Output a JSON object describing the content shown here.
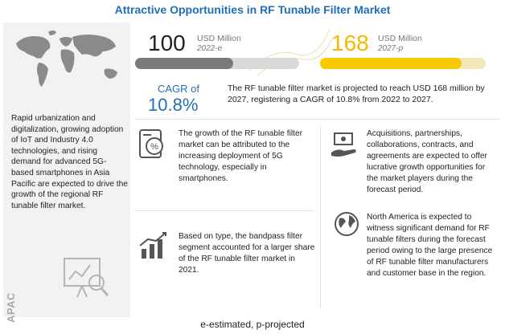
{
  "title": "Attractive Opportunities in RF Tunable Filter Market",
  "left_panel": {
    "description": "Rapid urbanization and digitalization, growing adoption of IoT and Industry 4.0 technologies, and rising demand for advanced 5G-based smartphones in Asia Pacific are expected to drive the growth of the regional RF tunable filter market.",
    "region_label": "APAC"
  },
  "metric_2022": {
    "value": "100",
    "unit": "USD Million",
    "year": "2022-e",
    "fill_fraction": 0.6
  },
  "metric_2027": {
    "value": "168",
    "unit": "USD Million",
    "year": "2027-p",
    "fill_fraction": 1.0
  },
  "cagr": {
    "label": "CAGR of",
    "value": "10.8%",
    "text": "The RF tunable filter market is projected to reach USD 168 million by 2027, registering a CAGR of 10.8% from 2022 to 2027."
  },
  "points": {
    "growth_5g": "The growth of the RF tunable filter market can be attributed to the increasing deployment of 5G technology, especially in smartphones.",
    "bandpass": "Based on type, the bandpass filter segment accounted for a larger share of the RF tunable filter market in 2021.",
    "acquisitions": "Acquisitions, partnerships, collaborations, contracts, and agreements are expected to offer lucrative growth opportunities for the market players during the forecast period.",
    "north_america": "North America is expected to witness significant demand for RF tunable filters during the forecast period owing to the large presence of RF tunable filter manufacturers and customer base in the region."
  },
  "footer": "e-estimated, p-projected",
  "colors": {
    "title": "#1f6fb8",
    "accent_yellow": "#f7c900",
    "gray_bar": "#7a7a7a"
  },
  "icons": [
    "world-map-icon",
    "analytics-icon",
    "percent-device-icon",
    "bar-growth-icon",
    "money-hand-icon",
    "globe-icon"
  ]
}
